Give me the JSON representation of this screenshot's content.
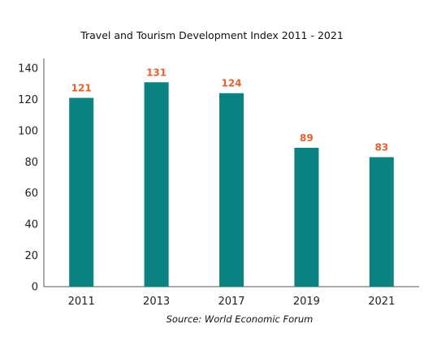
{
  "chart_data": {
    "type": "bar",
    "title": "Travel and Tourism Development Index 2011 - 2021",
    "categories": [
      "2011",
      "2013",
      "2017",
      "2019",
      "2021"
    ],
    "values": [
      121,
      131,
      124,
      89,
      83
    ],
    "data_labels": [
      "121",
      "131",
      "124",
      "89",
      "83"
    ],
    "y_ticks": [
      "0",
      "20",
      "40",
      "60",
      "80",
      "100",
      "120",
      "140"
    ],
    "xlabel": "",
    "ylabel": "",
    "ylim": [
      0,
      140
    ],
    "grid": false,
    "legend": "none"
  },
  "source": "Source: World Economic Forum",
  "colors": {
    "bar": "#0b8383",
    "label": "#e0612c",
    "axis": "#555555"
  }
}
